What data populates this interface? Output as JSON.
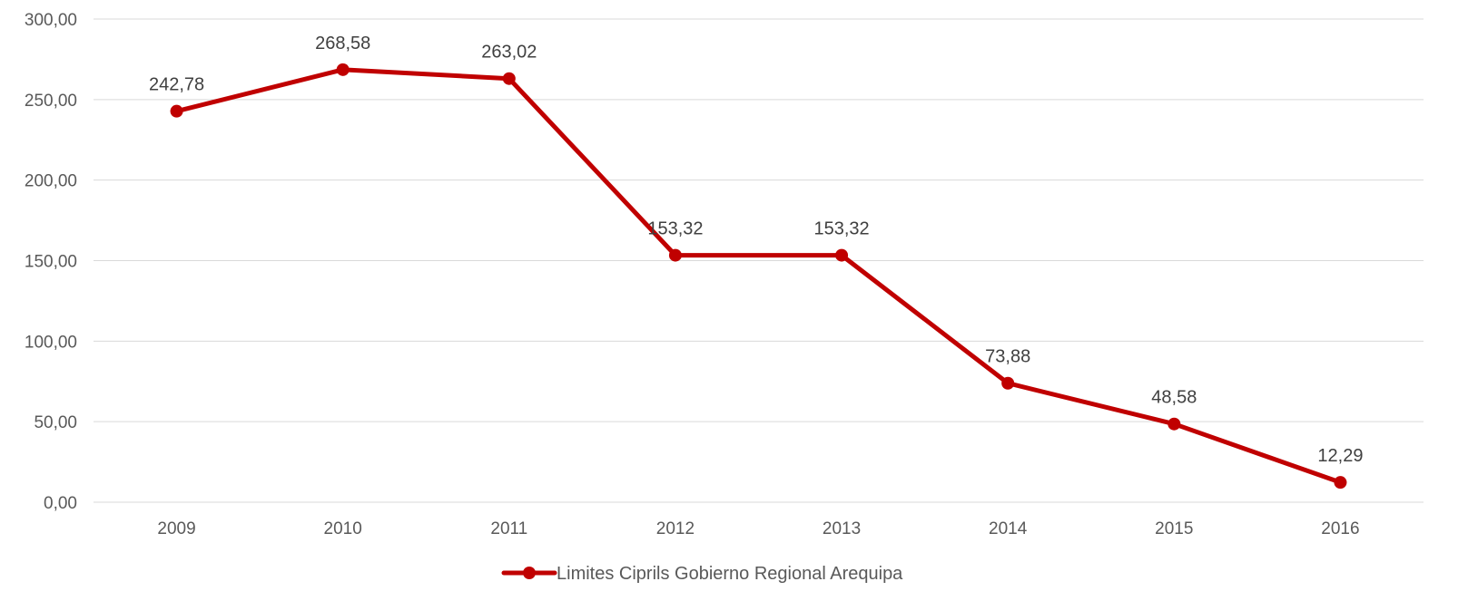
{
  "chart_data": {
    "type": "line",
    "categories": [
      "2009",
      "2010",
      "2011",
      "2012",
      "2013",
      "2014",
      "2015",
      "2016"
    ],
    "series": [
      {
        "name": "Limites Ciprils Gobierno Regional Arequipa",
        "values": [
          242.78,
          268.58,
          263.02,
          153.32,
          153.32,
          73.88,
          48.58,
          12.29
        ],
        "labels": [
          "242,78",
          "268,58",
          "263,02",
          "153,32",
          "153,32",
          "73,88",
          "48,58",
          "12,29"
        ],
        "color": "#c00000"
      }
    ],
    "y_ticks": [
      "0,00",
      "50,00",
      "100,00",
      "150,00",
      "200,00",
      "250,00",
      "300,00"
    ],
    "ylim": [
      0,
      300
    ],
    "y_step": 50,
    "grid": true,
    "legend_position": "bottom",
    "title": "",
    "xlabel": "",
    "ylabel": ""
  }
}
